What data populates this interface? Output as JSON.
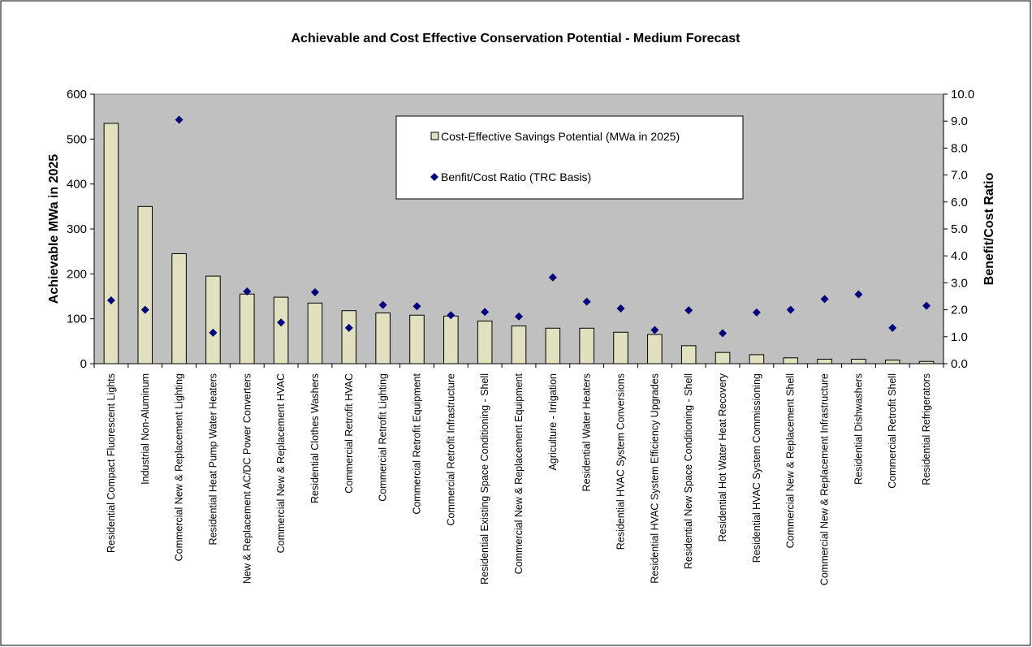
{
  "chart_data": {
    "type": "bar",
    "title": "Achievable and Cost Effective Conservation Potential - Medium Forecast",
    "ylabel": "Achievable MWa in 2025",
    "y2label": "Benefit/Cost Ratio",
    "ylim": [
      0,
      600
    ],
    "y2lim": [
      0,
      10
    ],
    "yticks": [
      "0",
      "100",
      "200",
      "300",
      "400",
      "500",
      "600"
    ],
    "y2ticks": [
      "0.0",
      "1.0",
      "2.0",
      "3.0",
      "4.0",
      "5.0",
      "6.0",
      "7.0",
      "8.0",
      "9.0",
      "10.0"
    ],
    "grid": false,
    "legend_position": "top-right",
    "categories": [
      "Residential Compact Fluorescent Lights",
      "Industrial Non-Aluminum",
      "Commercial New & Replacement Lighting",
      "Residential Heat Pump Water Heaters",
      "New & Replacement AC/DC Power Converters",
      "Commercial New & Replacement HVAC",
      "Residential Clothes Washers",
      "Commercial Retrofit HVAC",
      "Commercial Retrofit Lighting",
      "Commercial Retrofit Equipment",
      "Commercial Retrofit Infrastructure",
      "Residential Existing Space Conditioning - Shell",
      "Commercial New & Replacement Equipment",
      "Agriculture - Irrigation",
      "Residential Water Heaters",
      "Residential HVAC System Conversions",
      "Residential HVAC System Efficiency Upgrades",
      "Residential New Space Conditioning - Shell",
      "Residential Hot Water Heat Recovery",
      "Residential HVAC System Commissioning",
      "Commercial New & Replacement Shell",
      "Commercial New & Replacement Infrastructure",
      "Residential Dishwashers",
      "Commercial Retrofit Shell",
      "Residential Refrigerators"
    ],
    "series": [
      {
        "name": "Cost-Effective Savings Potential (MWa in 2025)",
        "type": "bar",
        "axis": "left",
        "color": "#e1e1bf",
        "values": [
          535,
          350,
          245,
          195,
          155,
          148,
          135,
          118,
          113,
          108,
          106,
          95,
          84,
          79,
          79,
          70,
          65,
          40,
          25,
          20,
          13,
          10,
          10,
          8,
          5
        ]
      },
      {
        "name": "Benfit/Cost Ratio (TRC Basis)",
        "type": "scatter",
        "axis": "right",
        "color": "#00007a",
        "values": [
          2.35,
          2.0,
          9.05,
          1.15,
          2.68,
          1.53,
          2.65,
          1.33,
          2.18,
          2.13,
          1.8,
          1.92,
          1.75,
          3.2,
          2.3,
          2.05,
          1.25,
          1.98,
          1.13,
          1.9,
          2.0,
          2.4,
          2.57,
          1.33,
          2.15
        ]
      }
    ]
  },
  "colors": {
    "plot_background": "#c0c0c0",
    "bar_fill": "#e1e1bf",
    "marker": "#00007a"
  }
}
